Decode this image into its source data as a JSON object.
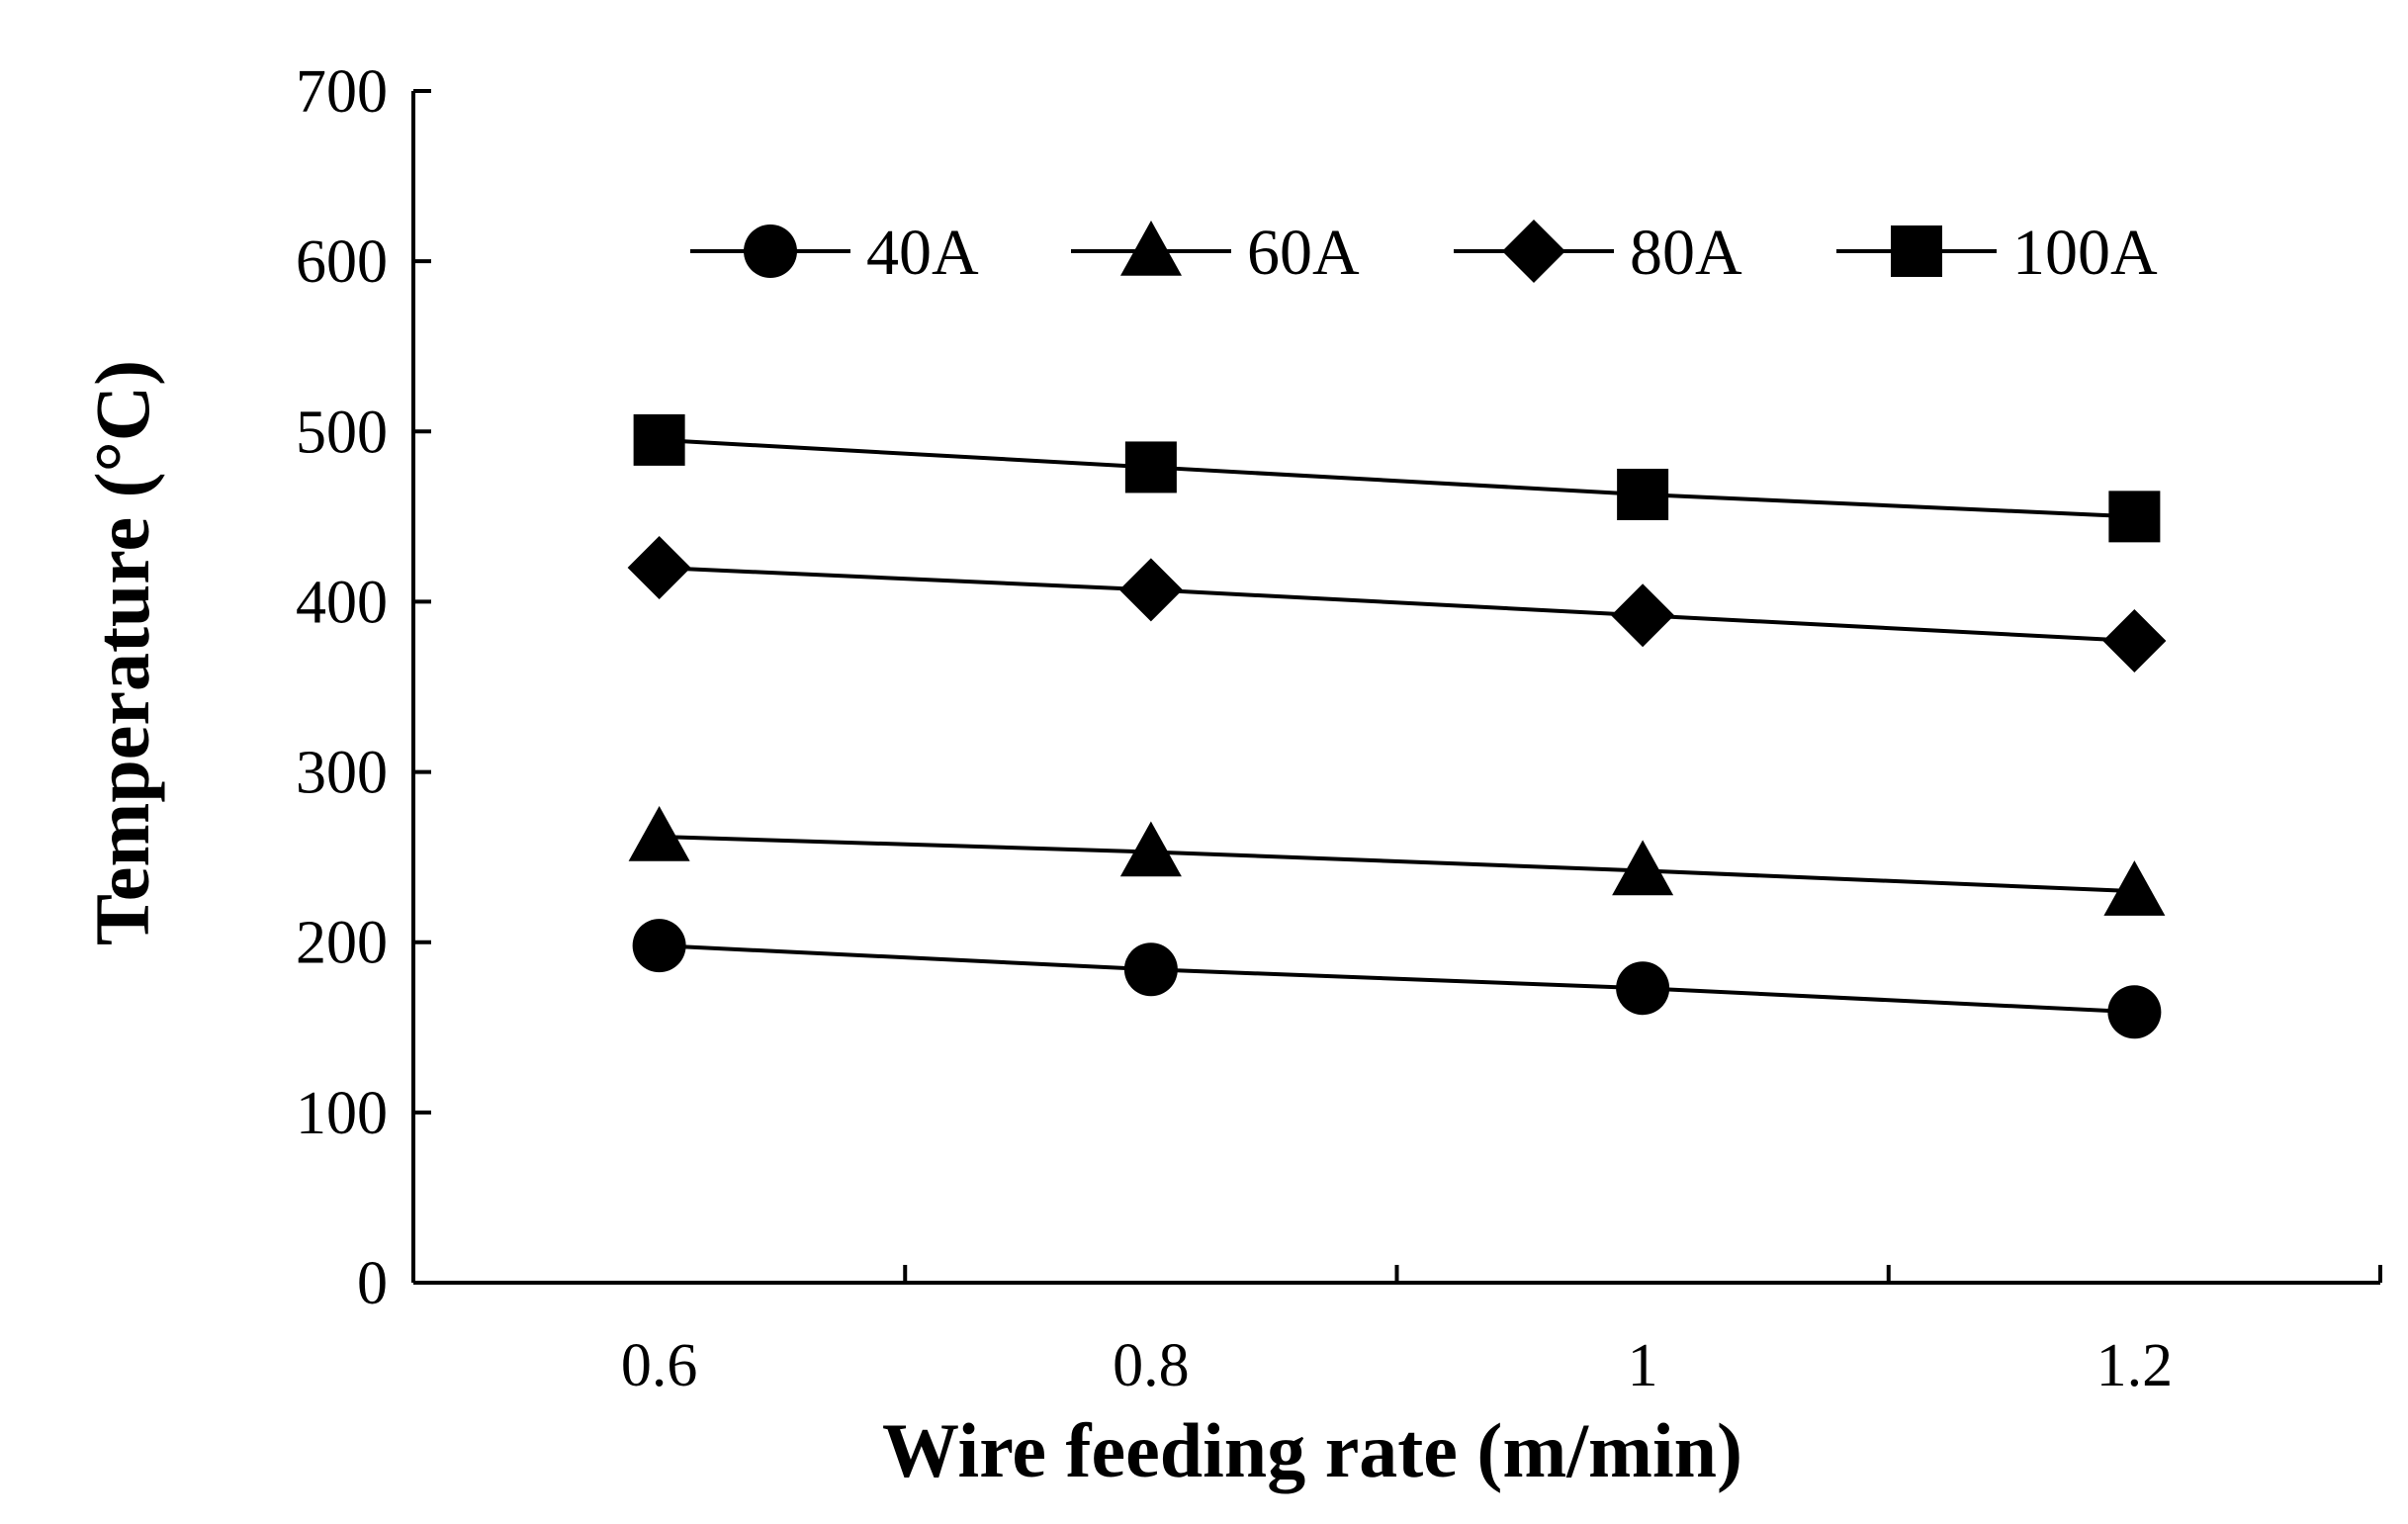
{
  "chart_data": {
    "type": "line",
    "title": "",
    "xlabel": "Wire feeding rate (m/min)",
    "ylabel": "Temperature (°C)",
    "xlim": [
      0.5,
      1.3
    ],
    "ylim": [
      0,
      700
    ],
    "x": [
      0.6,
      0.8,
      1.0,
      1.2
    ],
    "x_tick_labels": [
      "0.6",
      "0.8",
      "1",
      "1.2"
    ],
    "y_ticks": [
      0,
      100,
      200,
      300,
      400,
      500,
      600,
      700
    ],
    "y_tick_labels": [
      "0",
      "100",
      "200",
      "300",
      "400",
      "500",
      "600",
      "700"
    ],
    "x_minor_ticks": [
      0.7,
      0.9,
      1.1,
      1.3
    ],
    "legend_position": "top",
    "color": "#000000",
    "series": [
      {
        "name": "40A",
        "marker": "circle",
        "values": [
          198,
          184,
          173,
          159
        ]
      },
      {
        "name": "60A",
        "marker": "triangle",
        "values": [
          262,
          253,
          242,
          230
        ]
      },
      {
        "name": "80A",
        "marker": "diamond",
        "values": [
          420,
          407,
          392,
          377
        ]
      },
      {
        "name": "100A",
        "marker": "square",
        "values": [
          495,
          479,
          463,
          450
        ]
      }
    ]
  }
}
